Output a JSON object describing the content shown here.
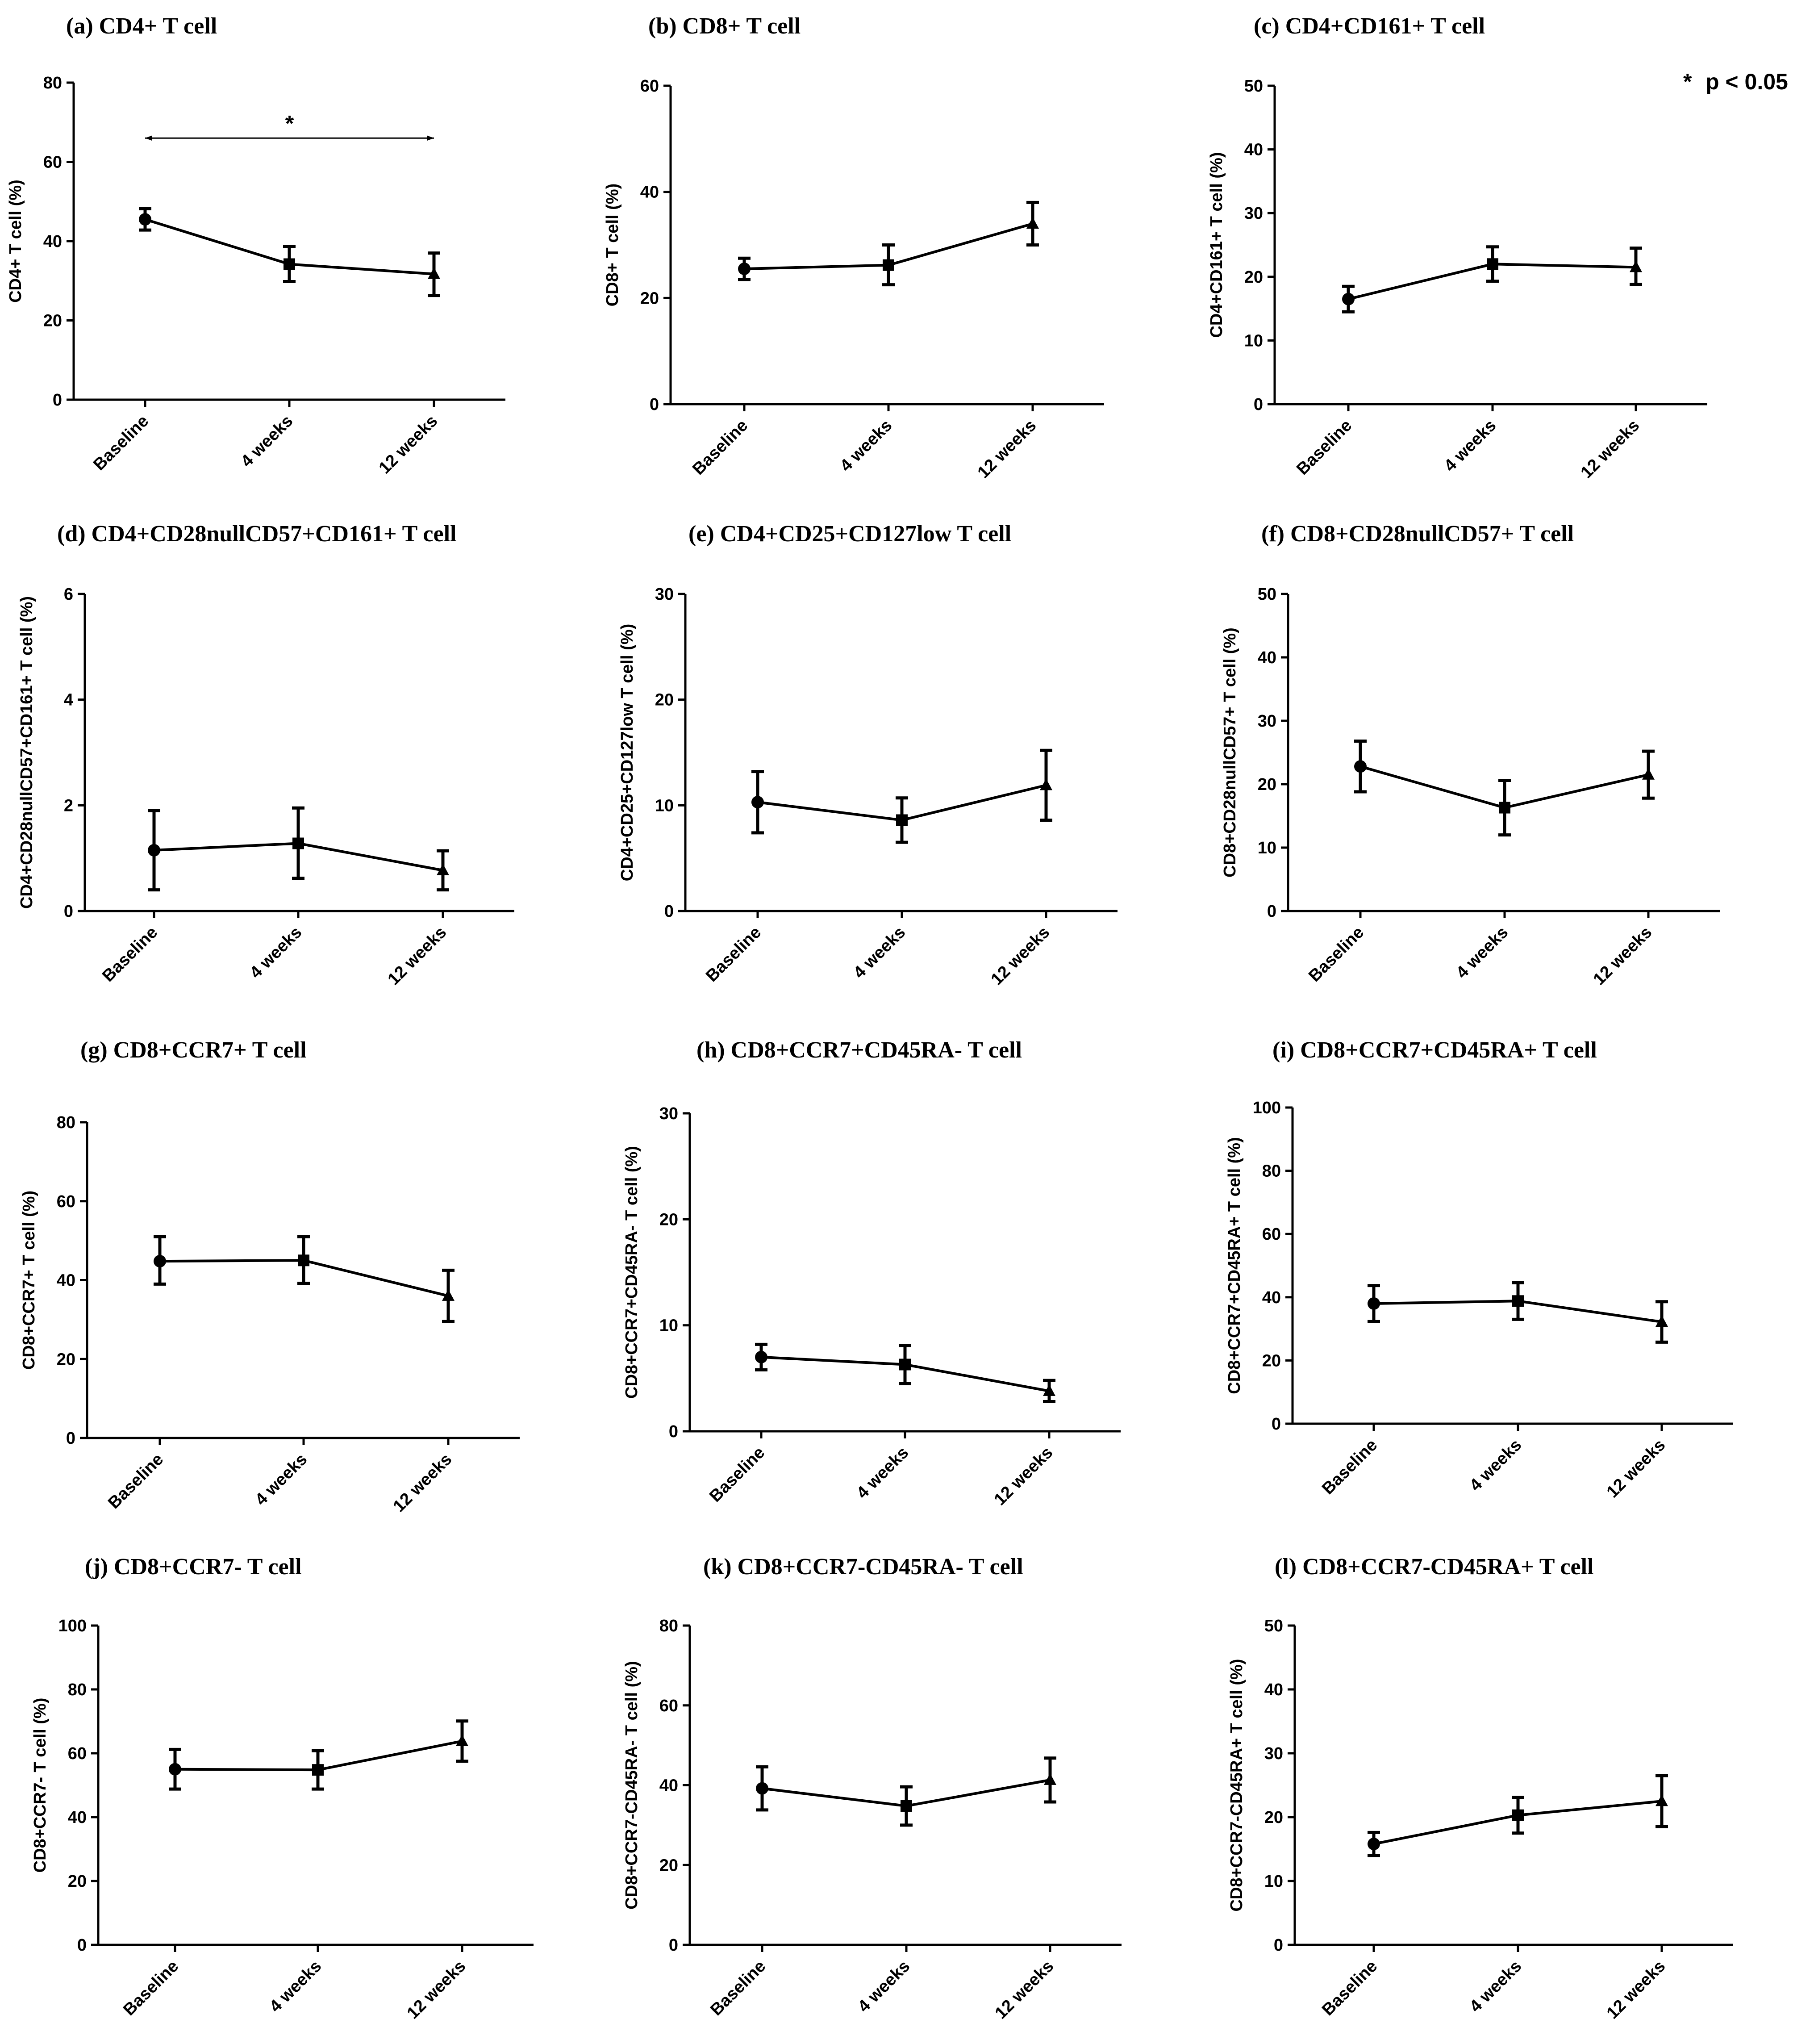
{
  "legend": {
    "star": "*",
    "text": "p < 0.05"
  },
  "chart_data": [
    {
      "title": "(a) CD4+ T cell",
      "ylabel": "CD4+ T cell (%)",
      "type": "line",
      "ylim": [
        0,
        80
      ],
      "yticks": [
        0,
        20,
        40,
        60,
        80
      ],
      "categories": [
        "Baseline",
        "4 weeks",
        "12 weeks"
      ],
      "markers": [
        "circle",
        "square",
        "triangle"
      ],
      "values": [
        45.5,
        34.2,
        31.7
      ],
      "err_low": [
        42.8,
        29.8,
        26.3
      ],
      "err_high": [
        48.2,
        38.7,
        37.0
      ],
      "significance": {
        "from": 0,
        "to": 2,
        "y": 66,
        "label": "*"
      }
    },
    {
      "title": "(b) CD8+ T cell",
      "ylabel": "CD8+ T cell (%)",
      "type": "line",
      "ylim": [
        0,
        60
      ],
      "yticks": [
        0,
        20,
        40,
        60
      ],
      "categories": [
        "Baseline",
        "4 weeks",
        "12 weeks"
      ],
      "markers": [
        "circle",
        "square",
        "triangle"
      ],
      "values": [
        25.5,
        26.2,
        34.0
      ],
      "err_low": [
        23.5,
        22.5,
        30.0
      ],
      "err_high": [
        27.5,
        30.0,
        38.0
      ]
    },
    {
      "title": "(c) CD4+CD161+ T cell",
      "ylabel": "CD4+CD161+ T cell (%)",
      "type": "line",
      "ylim": [
        0,
        50
      ],
      "yticks": [
        0,
        10,
        20,
        30,
        40,
        50
      ],
      "categories": [
        "Baseline",
        "4 weeks",
        "12 weeks"
      ],
      "markers": [
        "circle",
        "square",
        "triangle"
      ],
      "values": [
        16.5,
        22.0,
        21.5
      ],
      "err_low": [
        14.5,
        19.3,
        18.8
      ],
      "err_high": [
        18.5,
        24.7,
        24.5
      ]
    },
    {
      "title": "(d) CD4+CD28nullCD57+CD161+ T cell",
      "ylabel": "CD4+CD28nullCD57+CD161+ T cell (%)",
      "type": "line",
      "ylim": [
        0,
        6
      ],
      "yticks": [
        0,
        2,
        4,
        6
      ],
      "categories": [
        "Baseline",
        "4 weeks",
        "12 weeks"
      ],
      "markers": [
        "circle",
        "square",
        "triangle"
      ],
      "values": [
        1.15,
        1.28,
        0.77
      ],
      "err_low": [
        0.4,
        0.62,
        0.4
      ],
      "err_high": [
        1.9,
        1.95,
        1.14
      ]
    },
    {
      "title": "(e) CD4+CD25+CD127low T cell",
      "ylabel": "CD4+CD25+CD127low T cell (%)",
      "type": "line",
      "ylim": [
        0,
        30
      ],
      "yticks": [
        0,
        10,
        20,
        30
      ],
      "categories": [
        "Baseline",
        "4 weeks",
        "12 weeks"
      ],
      "markers": [
        "circle",
        "square",
        "triangle"
      ],
      "values": [
        10.3,
        8.6,
        11.9
      ],
      "err_low": [
        7.4,
        6.5,
        8.6
      ],
      "err_high": [
        13.2,
        10.7,
        15.2
      ]
    },
    {
      "title": "(f) CD8+CD28nullCD57+ T cell",
      "ylabel": "CD8+CD28nullCD57+ T cell (%)",
      "type": "line",
      "ylim": [
        0,
        50
      ],
      "yticks": [
        0,
        10,
        20,
        30,
        40,
        50
      ],
      "categories": [
        "Baseline",
        "4 weeks",
        "12 weeks"
      ],
      "markers": [
        "circle",
        "square",
        "triangle"
      ],
      "values": [
        22.8,
        16.3,
        21.5
      ],
      "err_low": [
        18.8,
        12.0,
        17.8
      ],
      "err_high": [
        26.8,
        20.6,
        25.2
      ]
    },
    {
      "title": "(g) CD8+CCR7+ T cell",
      "ylabel": "CD8+CCR7+ T cell (%)",
      "type": "line",
      "ylim": [
        0,
        80
      ],
      "yticks": [
        0,
        20,
        40,
        60,
        80
      ],
      "categories": [
        "Baseline",
        "4 weeks",
        "12 weeks"
      ],
      "markers": [
        "circle",
        "square",
        "triangle"
      ],
      "values": [
        44.8,
        45.0,
        36.0
      ],
      "err_low": [
        39.0,
        39.2,
        29.5
      ],
      "err_high": [
        51.0,
        51.0,
        42.5
      ]
    },
    {
      "title": "(h) CD8+CCR7+CD45RA- T cell",
      "ylabel": "CD8+CCR7+CD45RA- T cell (%)",
      "type": "line",
      "ylim": [
        0,
        30
      ],
      "yticks": [
        0,
        10,
        20,
        30
      ],
      "categories": [
        "Baseline",
        "4 weeks",
        "12 weeks"
      ],
      "markers": [
        "circle",
        "square",
        "triangle"
      ],
      "values": [
        7.0,
        6.3,
        3.8
      ],
      "err_low": [
        5.8,
        4.5,
        2.8
      ],
      "err_high": [
        8.2,
        8.1,
        4.8
      ]
    },
    {
      "title": "(i) CD8+CCR7+CD45RA+ T cell",
      "ylabel": "CD8+CCR7+CD45RA+ T cell (%)",
      "type": "line",
      "ylim": [
        0,
        100
      ],
      "yticks": [
        0,
        20,
        40,
        60,
        80,
        100
      ],
      "categories": [
        "Baseline",
        "4 weeks",
        "12 weeks"
      ],
      "markers": [
        "circle",
        "square",
        "triangle"
      ],
      "values": [
        38.0,
        38.8,
        32.2
      ],
      "err_low": [
        32.3,
        33.0,
        25.8
      ],
      "err_high": [
        43.7,
        44.6,
        38.6
      ]
    },
    {
      "title": "(j) CD8+CCR7- T cell",
      "ylabel": "CD8+CCR7- T cell (%)",
      "type": "line",
      "ylim": [
        0,
        100
      ],
      "yticks": [
        0,
        20,
        40,
        60,
        80,
        100
      ],
      "categories": [
        "Baseline",
        "4 weeks",
        "12 weeks"
      ],
      "markers": [
        "circle",
        "square",
        "triangle"
      ],
      "values": [
        55.0,
        54.8,
        63.8
      ],
      "err_low": [
        48.8,
        48.8,
        57.5
      ],
      "err_high": [
        61.2,
        60.8,
        70.1
      ]
    },
    {
      "title": "(k) CD8+CCR7-CD45RA- T cell",
      "ylabel": "CD8+CCR7-CD45RA- T cell (%)",
      "type": "line",
      "ylim": [
        0,
        80
      ],
      "yticks": [
        0,
        20,
        40,
        60,
        80
      ],
      "categories": [
        "Baseline",
        "4 weeks",
        "12 weeks"
      ],
      "markers": [
        "circle",
        "square",
        "triangle"
      ],
      "values": [
        39.2,
        34.8,
        41.3
      ],
      "err_low": [
        33.8,
        30.0,
        35.8
      ],
      "err_high": [
        44.6,
        39.6,
        46.8
      ]
    },
    {
      "title": "(l) CD8+CCR7-CD45RA+ T cell",
      "ylabel": "CD8+CCR7-CD45RA+ T cell (%)",
      "type": "line",
      "ylim": [
        0,
        50
      ],
      "yticks": [
        0,
        10,
        20,
        30,
        40,
        50
      ],
      "categories": [
        "Baseline",
        "4 weeks",
        "12 weeks"
      ],
      "markers": [
        "circle",
        "square",
        "triangle"
      ],
      "values": [
        15.8,
        20.3,
        22.5
      ],
      "err_low": [
        14.0,
        17.5,
        18.5
      ],
      "err_high": [
        17.6,
        23.1,
        26.5
      ]
    }
  ]
}
